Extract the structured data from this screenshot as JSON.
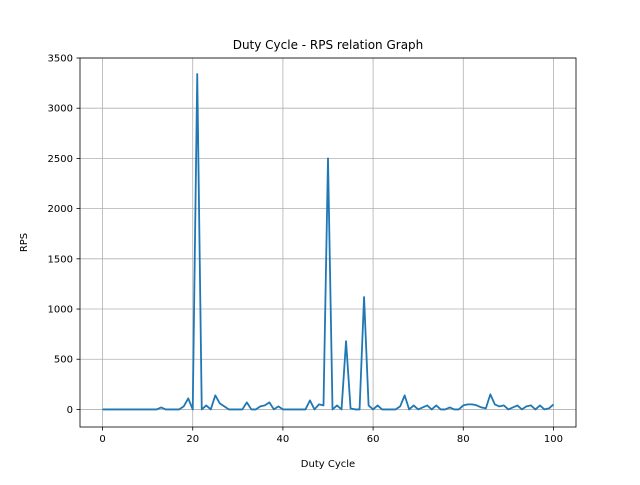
{
  "chart_data": {
    "type": "line",
    "title": "Duty Cycle - RPS relation Graph",
    "xlabel": "Duty Cycle",
    "ylabel": "RPS",
    "xlim": [
      -5,
      105
    ],
    "ylim": [
      -175,
      3500
    ],
    "xticks": [
      0,
      20,
      40,
      60,
      80,
      100
    ],
    "yticks": [
      0,
      500,
      1000,
      1500,
      2000,
      2500,
      3000,
      3500
    ],
    "grid": true,
    "colors": {
      "line": "#1f77b4",
      "grid": "#b0b0b0",
      "axes": "#000000"
    },
    "series": [
      {
        "x": [
          0,
          1,
          2,
          3,
          4,
          5,
          6,
          7,
          8,
          9,
          10,
          11,
          12,
          13,
          14,
          15,
          16,
          17,
          18,
          19,
          20,
          21,
          22,
          23,
          24,
          25,
          26,
          27,
          28,
          29,
          30,
          31,
          32,
          33,
          34,
          35,
          36,
          37,
          38,
          39,
          40,
          41,
          42,
          43,
          44,
          45,
          46,
          47,
          48,
          49,
          50,
          51,
          52,
          53,
          54,
          55,
          56,
          57,
          58,
          59,
          60,
          61,
          62,
          63,
          64,
          65,
          66,
          67,
          68,
          69,
          70,
          71,
          72,
          73,
          74,
          75,
          76,
          77,
          78,
          79,
          80,
          81,
          82,
          83,
          84,
          85,
          86,
          87,
          88,
          89,
          90,
          91,
          92,
          93,
          94,
          95,
          96,
          97,
          98,
          99,
          100
        ],
        "values": [
          0,
          0,
          0,
          0,
          0,
          0,
          0,
          0,
          0,
          0,
          0,
          0,
          0,
          20,
          0,
          0,
          0,
          0,
          30,
          110,
          0,
          3340,
          0,
          40,
          0,
          140,
          60,
          30,
          0,
          0,
          0,
          0,
          70,
          0,
          0,
          30,
          40,
          70,
          0,
          30,
          0,
          0,
          0,
          0,
          0,
          0,
          90,
          0,
          50,
          40,
          2500,
          0,
          40,
          0,
          680,
          10,
          0,
          0,
          1120,
          40,
          0,
          40,
          0,
          0,
          0,
          0,
          30,
          140,
          0,
          40,
          0,
          20,
          40,
          0,
          40,
          0,
          0,
          20,
          0,
          0,
          40,
          50,
          50,
          40,
          20,
          10,
          150,
          50,
          30,
          40,
          0,
          20,
          40,
          0,
          30,
          40,
          0,
          40,
          0,
          10,
          50
        ]
      }
    ]
  }
}
